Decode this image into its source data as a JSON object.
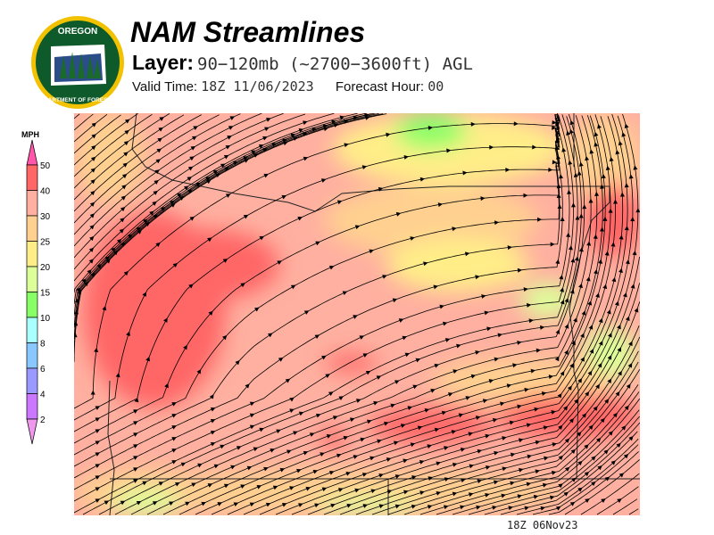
{
  "header": {
    "title": "NAM Streamlines",
    "layer_label": "Layer:",
    "layer_value": "90−120mb (~2700−3600ft) AGL",
    "valid_label": "Valid Time:",
    "valid_value": "18Z 11/06/2023",
    "forecast_label": "Forecast Hour:",
    "forecast_value": "00"
  },
  "logo": {
    "text_top": "OREGON",
    "text_bottom": "DEPARTMENT OF FORESTRY"
  },
  "legend": {
    "units": "MPH",
    "ticks": [
      "50",
      "40",
      "30",
      "25",
      "20",
      "15",
      "10",
      "8",
      "6",
      "4",
      "2"
    ],
    "colors": [
      "#ff6666",
      "#ffb0a0",
      "#ffd090",
      "#ffee88",
      "#ddff99",
      "#88ff66",
      "#aaffff",
      "#88c8ff",
      "#9999ff",
      "#cc77ff"
    ],
    "over_color": "#ff55aa",
    "under_color": "#ee99ee"
  },
  "map": {
    "stamp": "18Z 06Nov23"
  }
}
